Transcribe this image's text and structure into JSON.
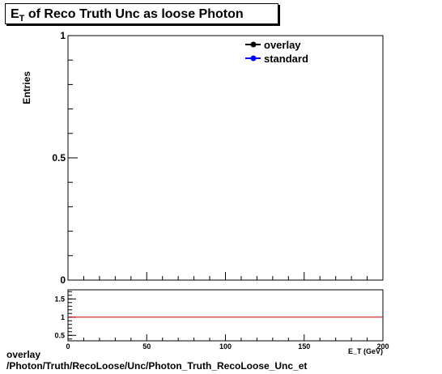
{
  "title": {
    "prefix": "E",
    "subscript": "T",
    "rest": " of Reco Truth Unc as loose Photon"
  },
  "chart_data": [
    {
      "type": "line",
      "ylabel": "Entries",
      "xlim": [
        0,
        200
      ],
      "ylim": [
        0,
        1
      ],
      "yticks": [
        "0",
        "0.5",
        "1"
      ],
      "series": [
        {
          "name": "overlay",
          "color": "#000000",
          "values": []
        },
        {
          "name": "standard",
          "color": "#0000ff",
          "values": []
        }
      ],
      "legend": "top-right"
    },
    {
      "type": "line",
      "xlabel": "E_T (GeV)",
      "xlim": [
        0,
        200
      ],
      "ylim": [
        0.35,
        1.75
      ],
      "xticks": [
        "0",
        "50",
        "100",
        "150",
        "200"
      ],
      "yticks": [
        "0.5",
        "1",
        "1.5"
      ],
      "reference_line": {
        "y": 1,
        "color": "#cc0000"
      }
    }
  ],
  "footer": {
    "line1": "overlay",
    "line2": "/Photon/Truth/RecoLoose/Unc/Photon_Truth_RecoLoose_Unc_et"
  }
}
